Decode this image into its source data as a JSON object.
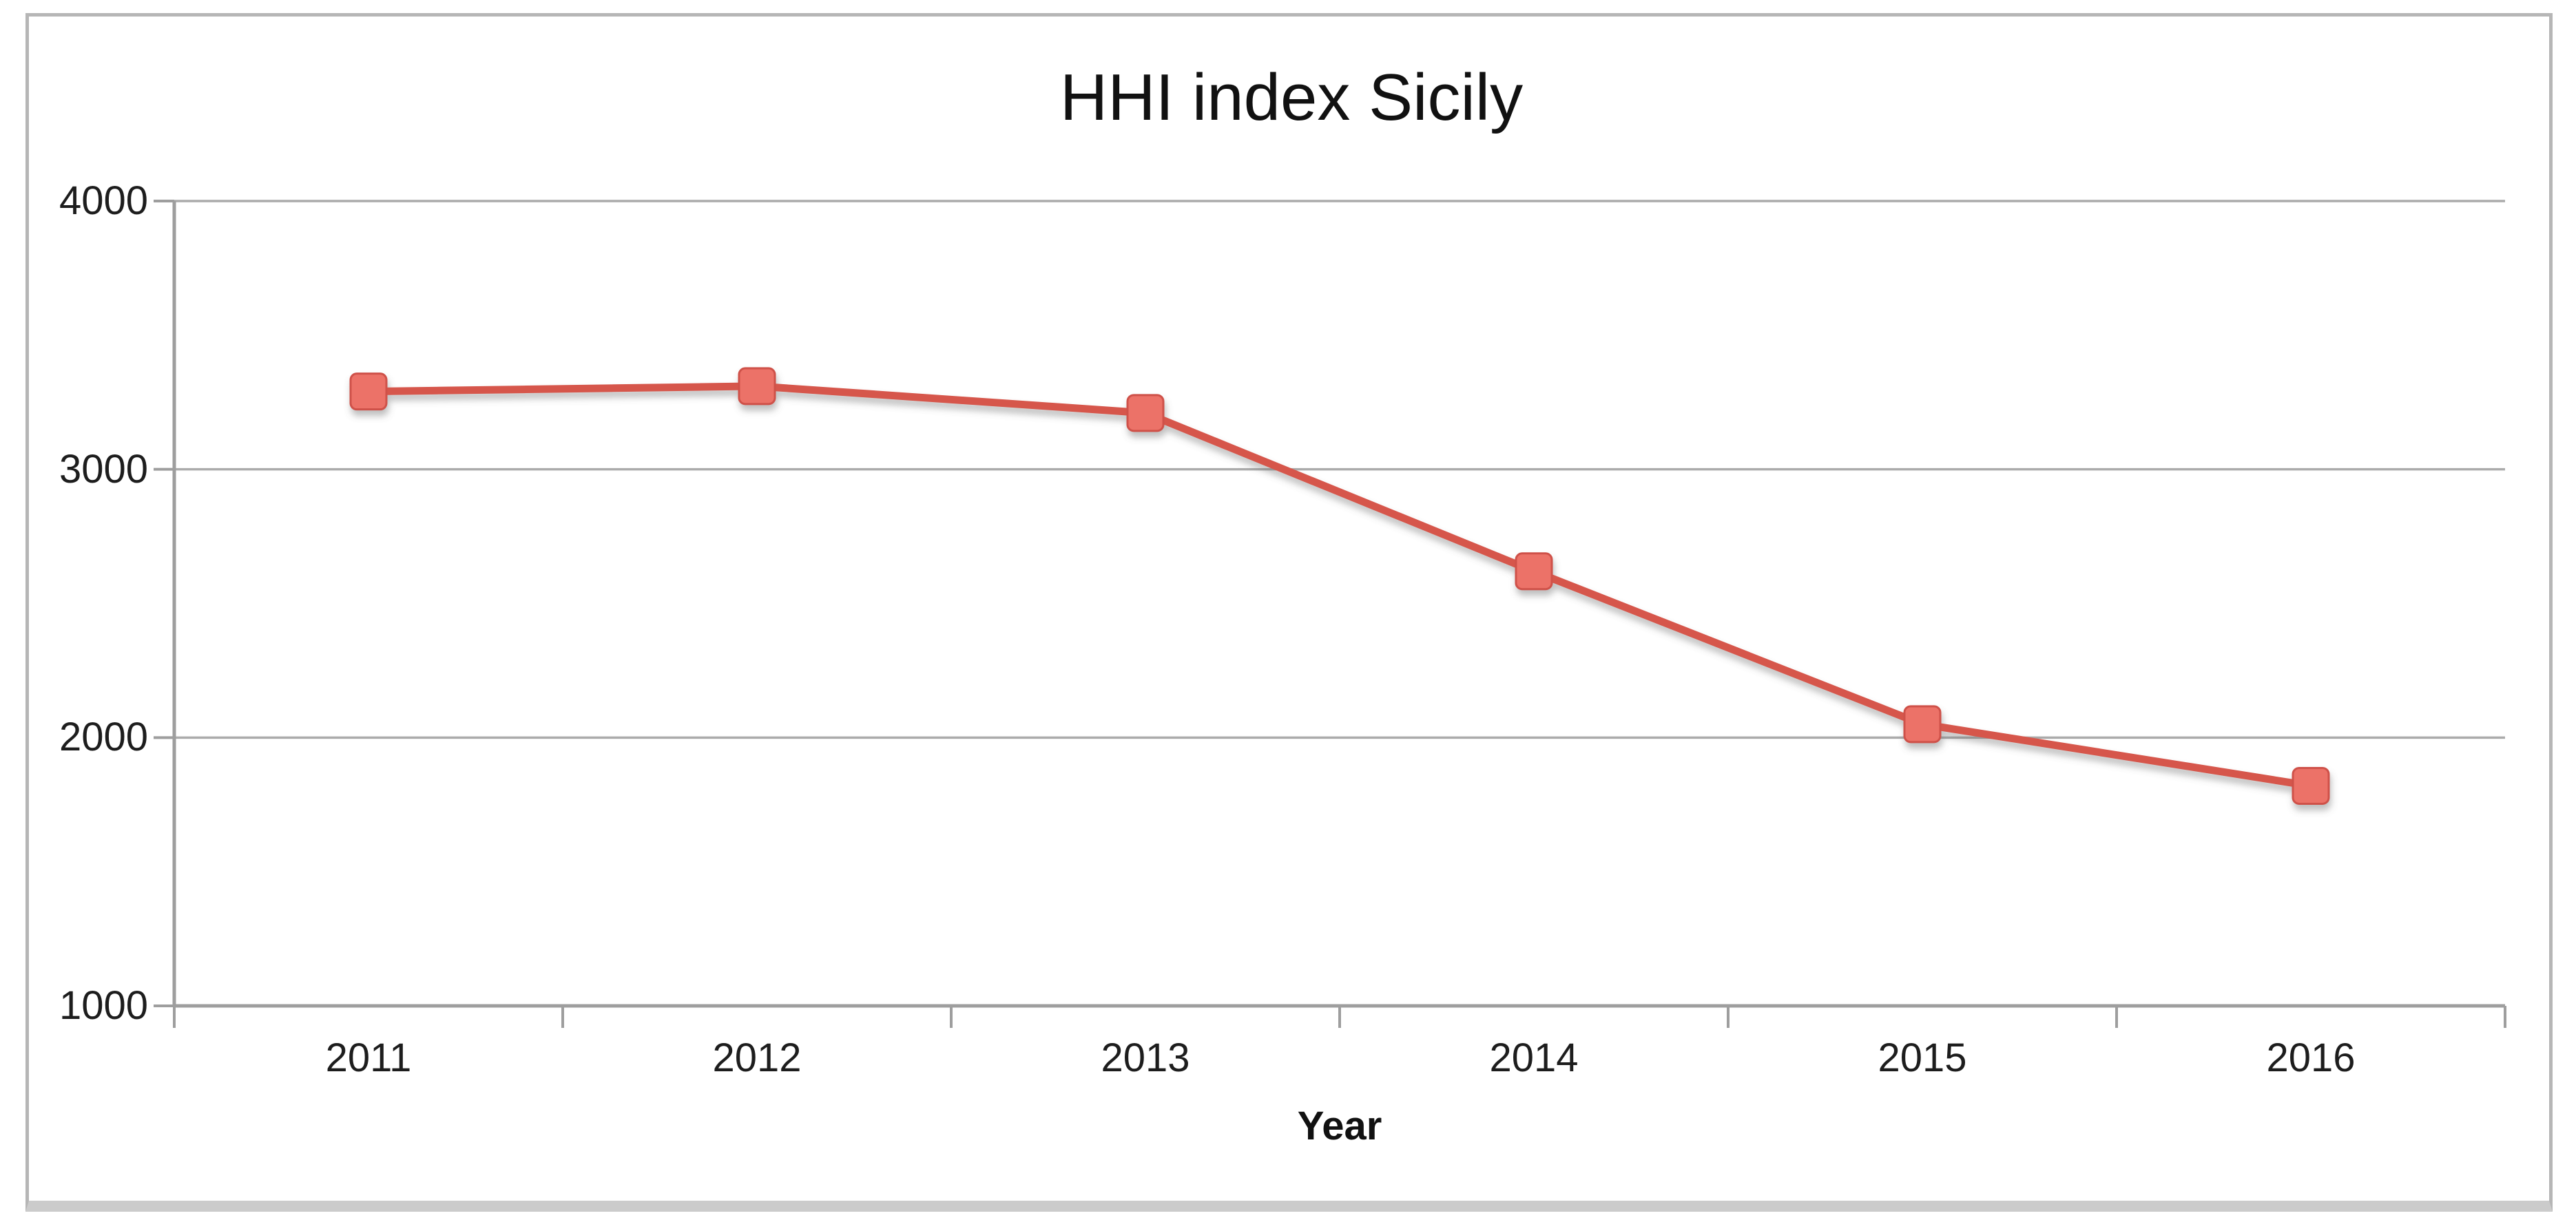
{
  "chart_data": {
    "type": "line",
    "title": "HHI index Sicily",
    "xlabel": "Year",
    "ylabel": "",
    "categories": [
      "2011",
      "2012",
      "2013",
      "2014",
      "2015",
      "2016"
    ],
    "values": [
      3290,
      3310,
      3210,
      2620,
      2050,
      1820
    ],
    "ylim": [
      1000,
      4000
    ],
    "yticks": [
      4000,
      3000,
      2000,
      1000
    ],
    "grid": "horizontal-gridlines-on",
    "legend": "none",
    "line_color": "#d6564b",
    "marker_shape": "square",
    "marker_fill": "#ec7268",
    "marker_border": "#cf5148",
    "grid_color": "#ababab",
    "axis_color": "#9e9e9e",
    "text_color": "#1d1d1d",
    "frame_border_color": "#b6b6b6",
    "frame_bottom_bar_color": "#cbcbcb"
  }
}
